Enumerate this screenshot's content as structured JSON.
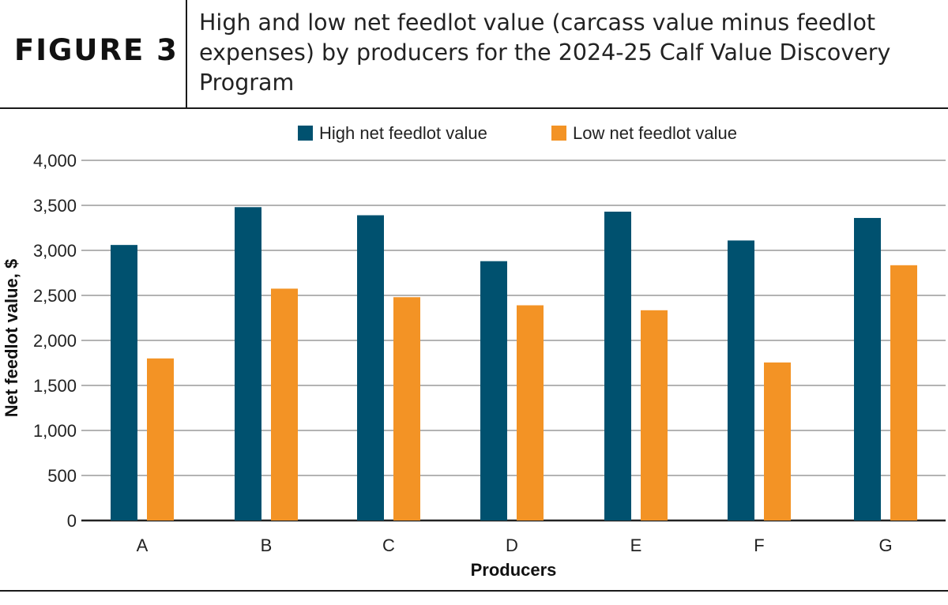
{
  "figure": {
    "label": "FIGURE 3",
    "title": "High and low net feedlot value (carcass value minus feedlot expenses) by producers for the 2024-25 Calf Value Discovery Program"
  },
  "chart_data": {
    "type": "bar",
    "title": "High and low net feedlot value (carcass value minus feedlot expenses) by producers for the 2024-25 Calf Value Discovery Program",
    "xlabel": "Producers",
    "ylabel": "Net feedlot value, $",
    "categories": [
      "A",
      "B",
      "C",
      "D",
      "E",
      "F",
      "G"
    ],
    "series": [
      {
        "name": "High net feedlot value",
        "color": "#00516f",
        "values": [
          3060,
          3480,
          3390,
          2880,
          3430,
          3110,
          3360
        ]
      },
      {
        "name": "Low net feedlot value",
        "color": "#f39325",
        "values": [
          1800,
          2575,
          2480,
          2390,
          2335,
          1755,
          2835
        ]
      }
    ],
    "ylim": [
      0,
      4000
    ],
    "yticks": [
      0,
      500,
      1000,
      1500,
      2000,
      2500,
      3000,
      3500,
      4000
    ],
    "ytick_labels": [
      "0",
      "500",
      "1,000",
      "1,500",
      "2,000",
      "2,500",
      "3,000",
      "3,500",
      "4,000"
    ],
    "grid": true,
    "legend_position": "top-center"
  }
}
